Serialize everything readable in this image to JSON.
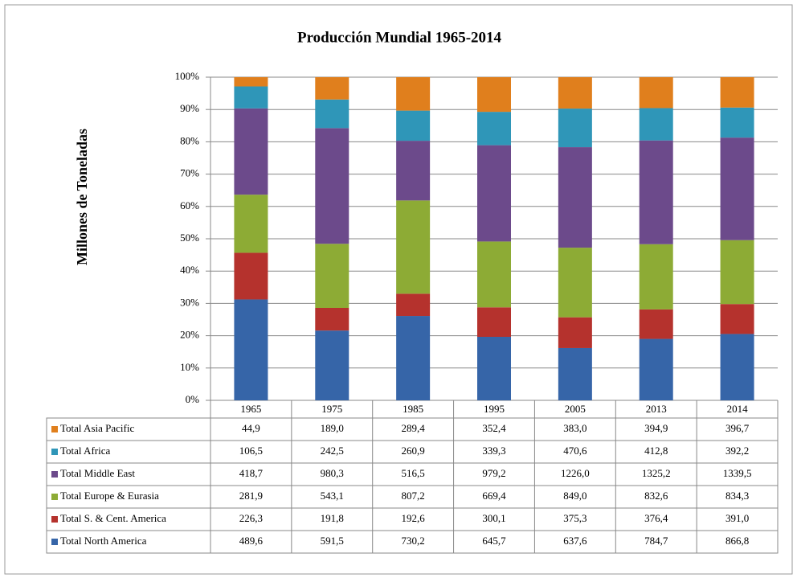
{
  "chart_data": {
    "type": "bar",
    "stacking": "percent",
    "title": "Producción Mundial 1965-2014",
    "y_label": "Millones de Toneladas",
    "categories": [
      "1965",
      "1975",
      "1985",
      "1995",
      "2005",
      "2013",
      "2014"
    ],
    "series": [
      {
        "name": "Total North America",
        "color": "#3665a8",
        "values": [
          489.6,
          591.5,
          730.2,
          645.7,
          637.6,
          784.7,
          866.8
        ],
        "value_labels": [
          "489,6",
          "591,5",
          "730,2",
          "645,7",
          "637,6",
          "784,7",
          "866,8"
        ]
      },
      {
        "name": "Total S. & Cent. America",
        "color": "#b5322d",
        "values": [
          226.3,
          191.8,
          192.6,
          300.1,
          375.3,
          376.4,
          391.0
        ],
        "value_labels": [
          "226,3",
          "191,8",
          "192,6",
          "300,1",
          "375,3",
          "376,4",
          "391,0"
        ]
      },
      {
        "name": "Total Europe & Eurasia",
        "color": "#8dab35",
        "values": [
          281.9,
          543.1,
          807.2,
          669.4,
          849.0,
          832.6,
          834.3
        ],
        "value_labels": [
          "281,9",
          "543,1",
          "807,2",
          "669,4",
          "849,0",
          "832,6",
          "834,3"
        ]
      },
      {
        "name": "Total Middle East",
        "color": "#6c4a8b",
        "values": [
          418.7,
          980.3,
          516.5,
          979.2,
          1226.0,
          1325.2,
          1339.5
        ],
        "value_labels": [
          "418,7",
          "980,3",
          "516,5",
          "979,2",
          "1226,0",
          "1325,2",
          "1339,5"
        ]
      },
      {
        "name": "Total Africa",
        "color": "#2f96b8",
        "values": [
          106.5,
          242.5,
          260.9,
          339.3,
          470.6,
          412.8,
          392.2
        ],
        "value_labels": [
          "106,5",
          "242,5",
          "260,9",
          "339,3",
          "470,6",
          "412,8",
          "392,2"
        ]
      },
      {
        "name": "Total Asia Pacific",
        "color": "#e07f1d",
        "values": [
          44.9,
          189.0,
          289.4,
          352.4,
          383.0,
          394.9,
          396.7
        ],
        "value_labels": [
          "44,9",
          "189,0",
          "289,4",
          "352,4",
          "383,0",
          "394,9",
          "396,7"
        ]
      }
    ],
    "ylim": [
      0,
      100
    ],
    "yticks": [
      {
        "value": 0,
        "label": "0%"
      },
      {
        "value": 10,
        "label": "10%"
      },
      {
        "value": 20,
        "label": "20%"
      },
      {
        "value": 30,
        "label": "30%"
      },
      {
        "value": 40,
        "label": "40%"
      },
      {
        "value": 50,
        "label": "50%"
      },
      {
        "value": 60,
        "label": "60%"
      },
      {
        "value": 70,
        "label": "70%"
      },
      {
        "value": 80,
        "label": "80%"
      },
      {
        "value": 90,
        "label": "90%"
      },
      {
        "value": 100,
        "label": "100%"
      }
    ],
    "grid": true
  }
}
